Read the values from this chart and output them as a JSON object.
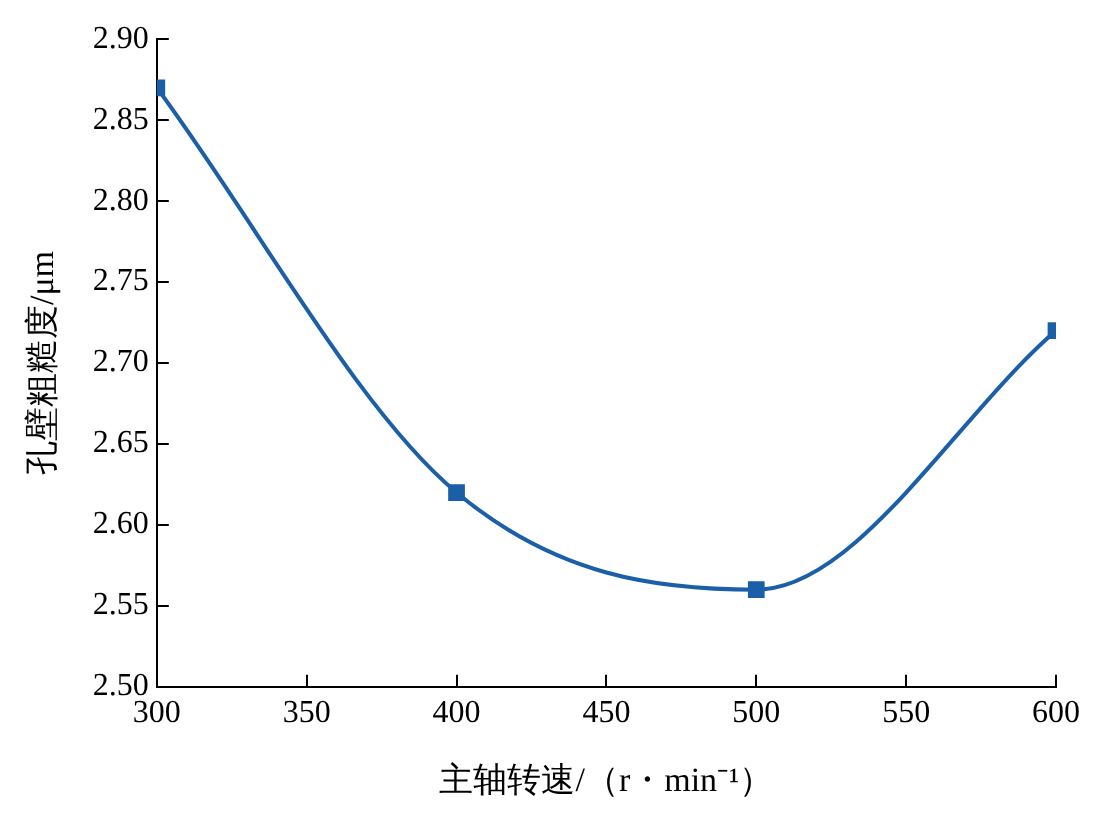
{
  "chart_data": {
    "type": "line",
    "xlabel": "主轴转速/（r・min⁻¹）",
    "ylabel": "孔壁粗糙度/μm",
    "x": [
      300,
      400,
      500,
      600
    ],
    "series": [
      {
        "color": "#1a5fa8",
        "values": [
          2.87,
          2.62,
          2.56,
          2.72
        ]
      }
    ],
    "xlim": [
      300,
      600
    ],
    "xticks": [
      300,
      350,
      400,
      450,
      500,
      550,
      600
    ],
    "ylim": [
      2.5,
      2.9
    ],
    "yticks": [
      {
        "value": 2.5,
        "label": "2.50"
      },
      {
        "value": 2.55,
        "label": "2.55"
      },
      {
        "value": 2.6,
        "label": "2.60"
      },
      {
        "value": 2.65,
        "label": "2.65"
      },
      {
        "value": 2.7,
        "label": "2.70"
      },
      {
        "value": 2.75,
        "label": "2.75"
      },
      {
        "value": 2.8,
        "label": "2.80"
      },
      {
        "value": 2.85,
        "label": "2.85"
      },
      {
        "value": 2.9,
        "label": "2.90"
      }
    ],
    "grid": false,
    "legend": false,
    "marker": "square",
    "line_style": "solid"
  }
}
